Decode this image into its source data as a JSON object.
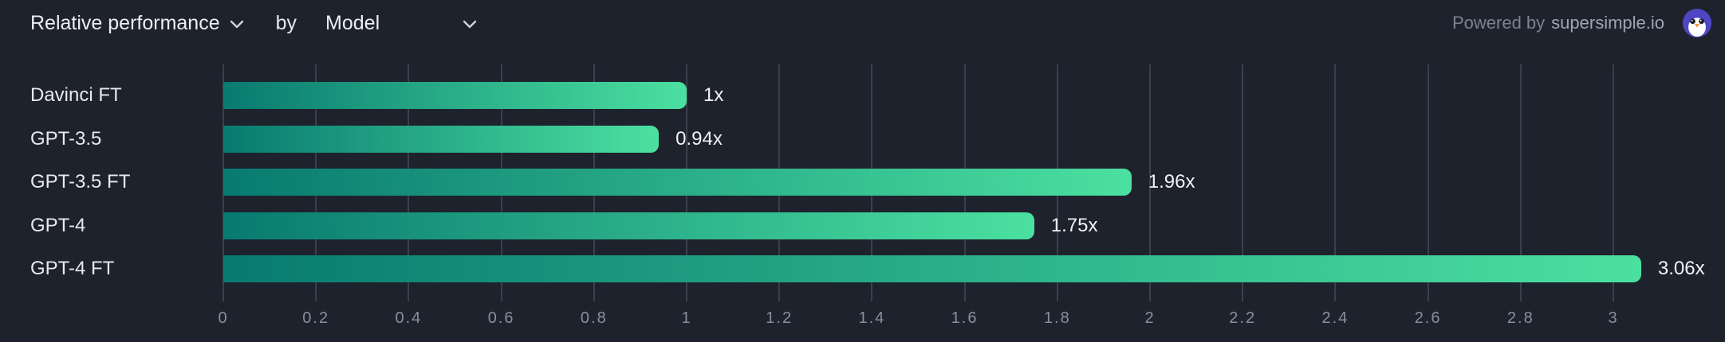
{
  "header": {
    "metric_label": "Relative performance",
    "by_label": "by",
    "dimension_label": "Model",
    "powered_by_prefix": "Powered by",
    "powered_by_brand": "supersimple.io"
  },
  "colors": {
    "background": "#1e222d",
    "gridline": "#3a3f4b",
    "bar_gradient_start": "#087a70",
    "bar_gradient_end": "#4be0a0",
    "logo_circle": "#4f46c5",
    "logo_beak": "#f6953c"
  },
  "chart_data": {
    "type": "bar",
    "orientation": "horizontal",
    "title": "Relative performance by Model",
    "categories": [
      "Davinci FT",
      "GPT-3.5",
      "GPT-3.5 FT",
      "GPT-4",
      "GPT-4 FT"
    ],
    "values": [
      1,
      0.94,
      1.96,
      1.75,
      3.06
    ],
    "value_labels": [
      "1x",
      "0.94x",
      "1.96x",
      "1.75x",
      "3.06x"
    ],
    "xlim": [
      0,
      3.2
    ],
    "xticks": [
      0,
      0.2,
      0.4,
      0.6,
      0.8,
      1,
      1.2,
      1.4,
      1.6,
      1.8,
      2,
      2.2,
      2.4,
      2.6,
      2.8,
      3
    ],
    "xtick_labels": [
      "0",
      "0.2",
      "0.4",
      "0.6",
      "0.8",
      "1",
      "1.2",
      "1.4",
      "1.6",
      "1.8",
      "2",
      "2.2",
      "2.4",
      "2.6",
      "2.8",
      "3"
    ],
    "grid": true,
    "legend": false
  }
}
